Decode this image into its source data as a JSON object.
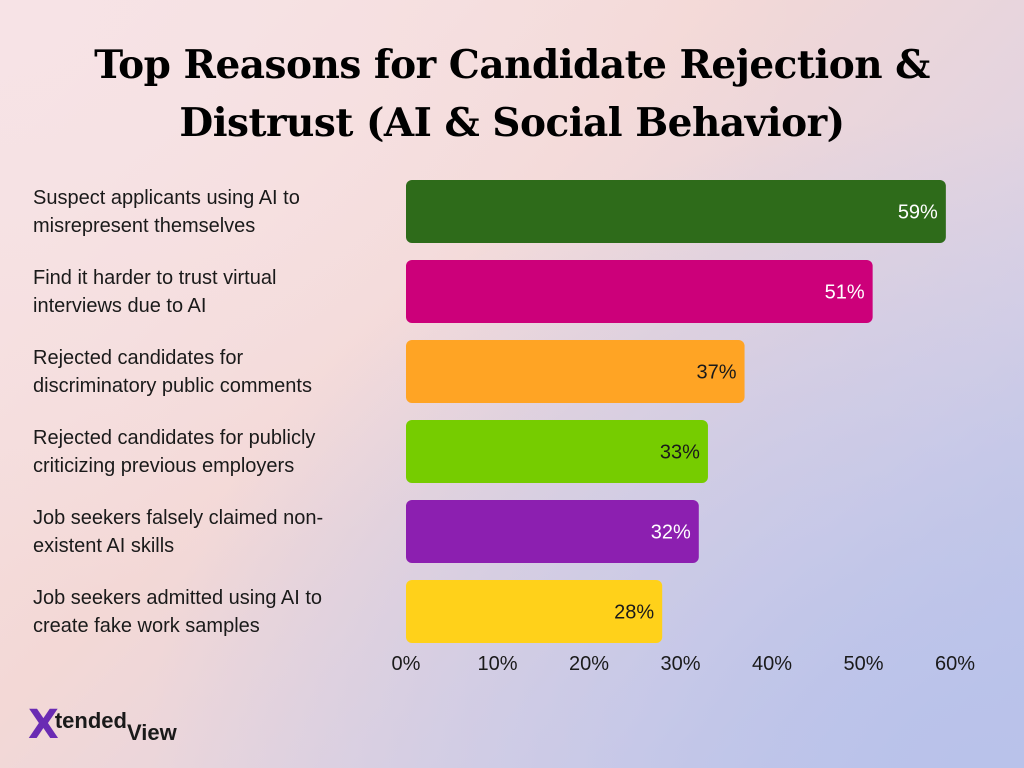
{
  "chart_data": {
    "type": "bar",
    "orientation": "horizontal",
    "title": "Top Reasons for Candidate Rejection & Distrust (AI & Social Behavior)",
    "categories": [
      [
        "Suspect applicants using AI to",
        "misrepresent themselves"
      ],
      [
        "Find it harder to trust virtual",
        "interviews due to AI"
      ],
      [
        "Rejected candidates for",
        "discriminatory public comments"
      ],
      [
        "Rejected candidates for publicly",
        "criticizing previous employers"
      ],
      [
        "Job seekers falsely claimed non-",
        "existent AI skills"
      ],
      [
        "Job seekers admitted using AI to",
        "create fake work samples"
      ]
    ],
    "values": [
      59,
      51,
      37,
      33,
      32,
      28
    ],
    "value_labels": [
      "59%",
      "51%",
      "37%",
      "33%",
      "32%",
      "28%"
    ],
    "colors": [
      "#2e6b1a",
      "#cc007a",
      "#ffa424",
      "#76cc00",
      "#8c1fb0",
      "#ffd11a"
    ],
    "label_colors": [
      "#ffffff",
      "#ffffff",
      "#1a1a1a",
      "#1a1a1a",
      "#ffffff",
      "#1a1a1a"
    ],
    "xlim": [
      0,
      60
    ],
    "xticks": [
      0,
      10,
      20,
      30,
      40,
      50,
      60
    ],
    "xtick_labels": [
      "0%",
      "10%",
      "20%",
      "30%",
      "40%",
      "50%",
      "60%"
    ],
    "grid": false,
    "legend": "none"
  },
  "logo": {
    "mark": "X",
    "text_top": "tended",
    "text_bottom": "View"
  }
}
